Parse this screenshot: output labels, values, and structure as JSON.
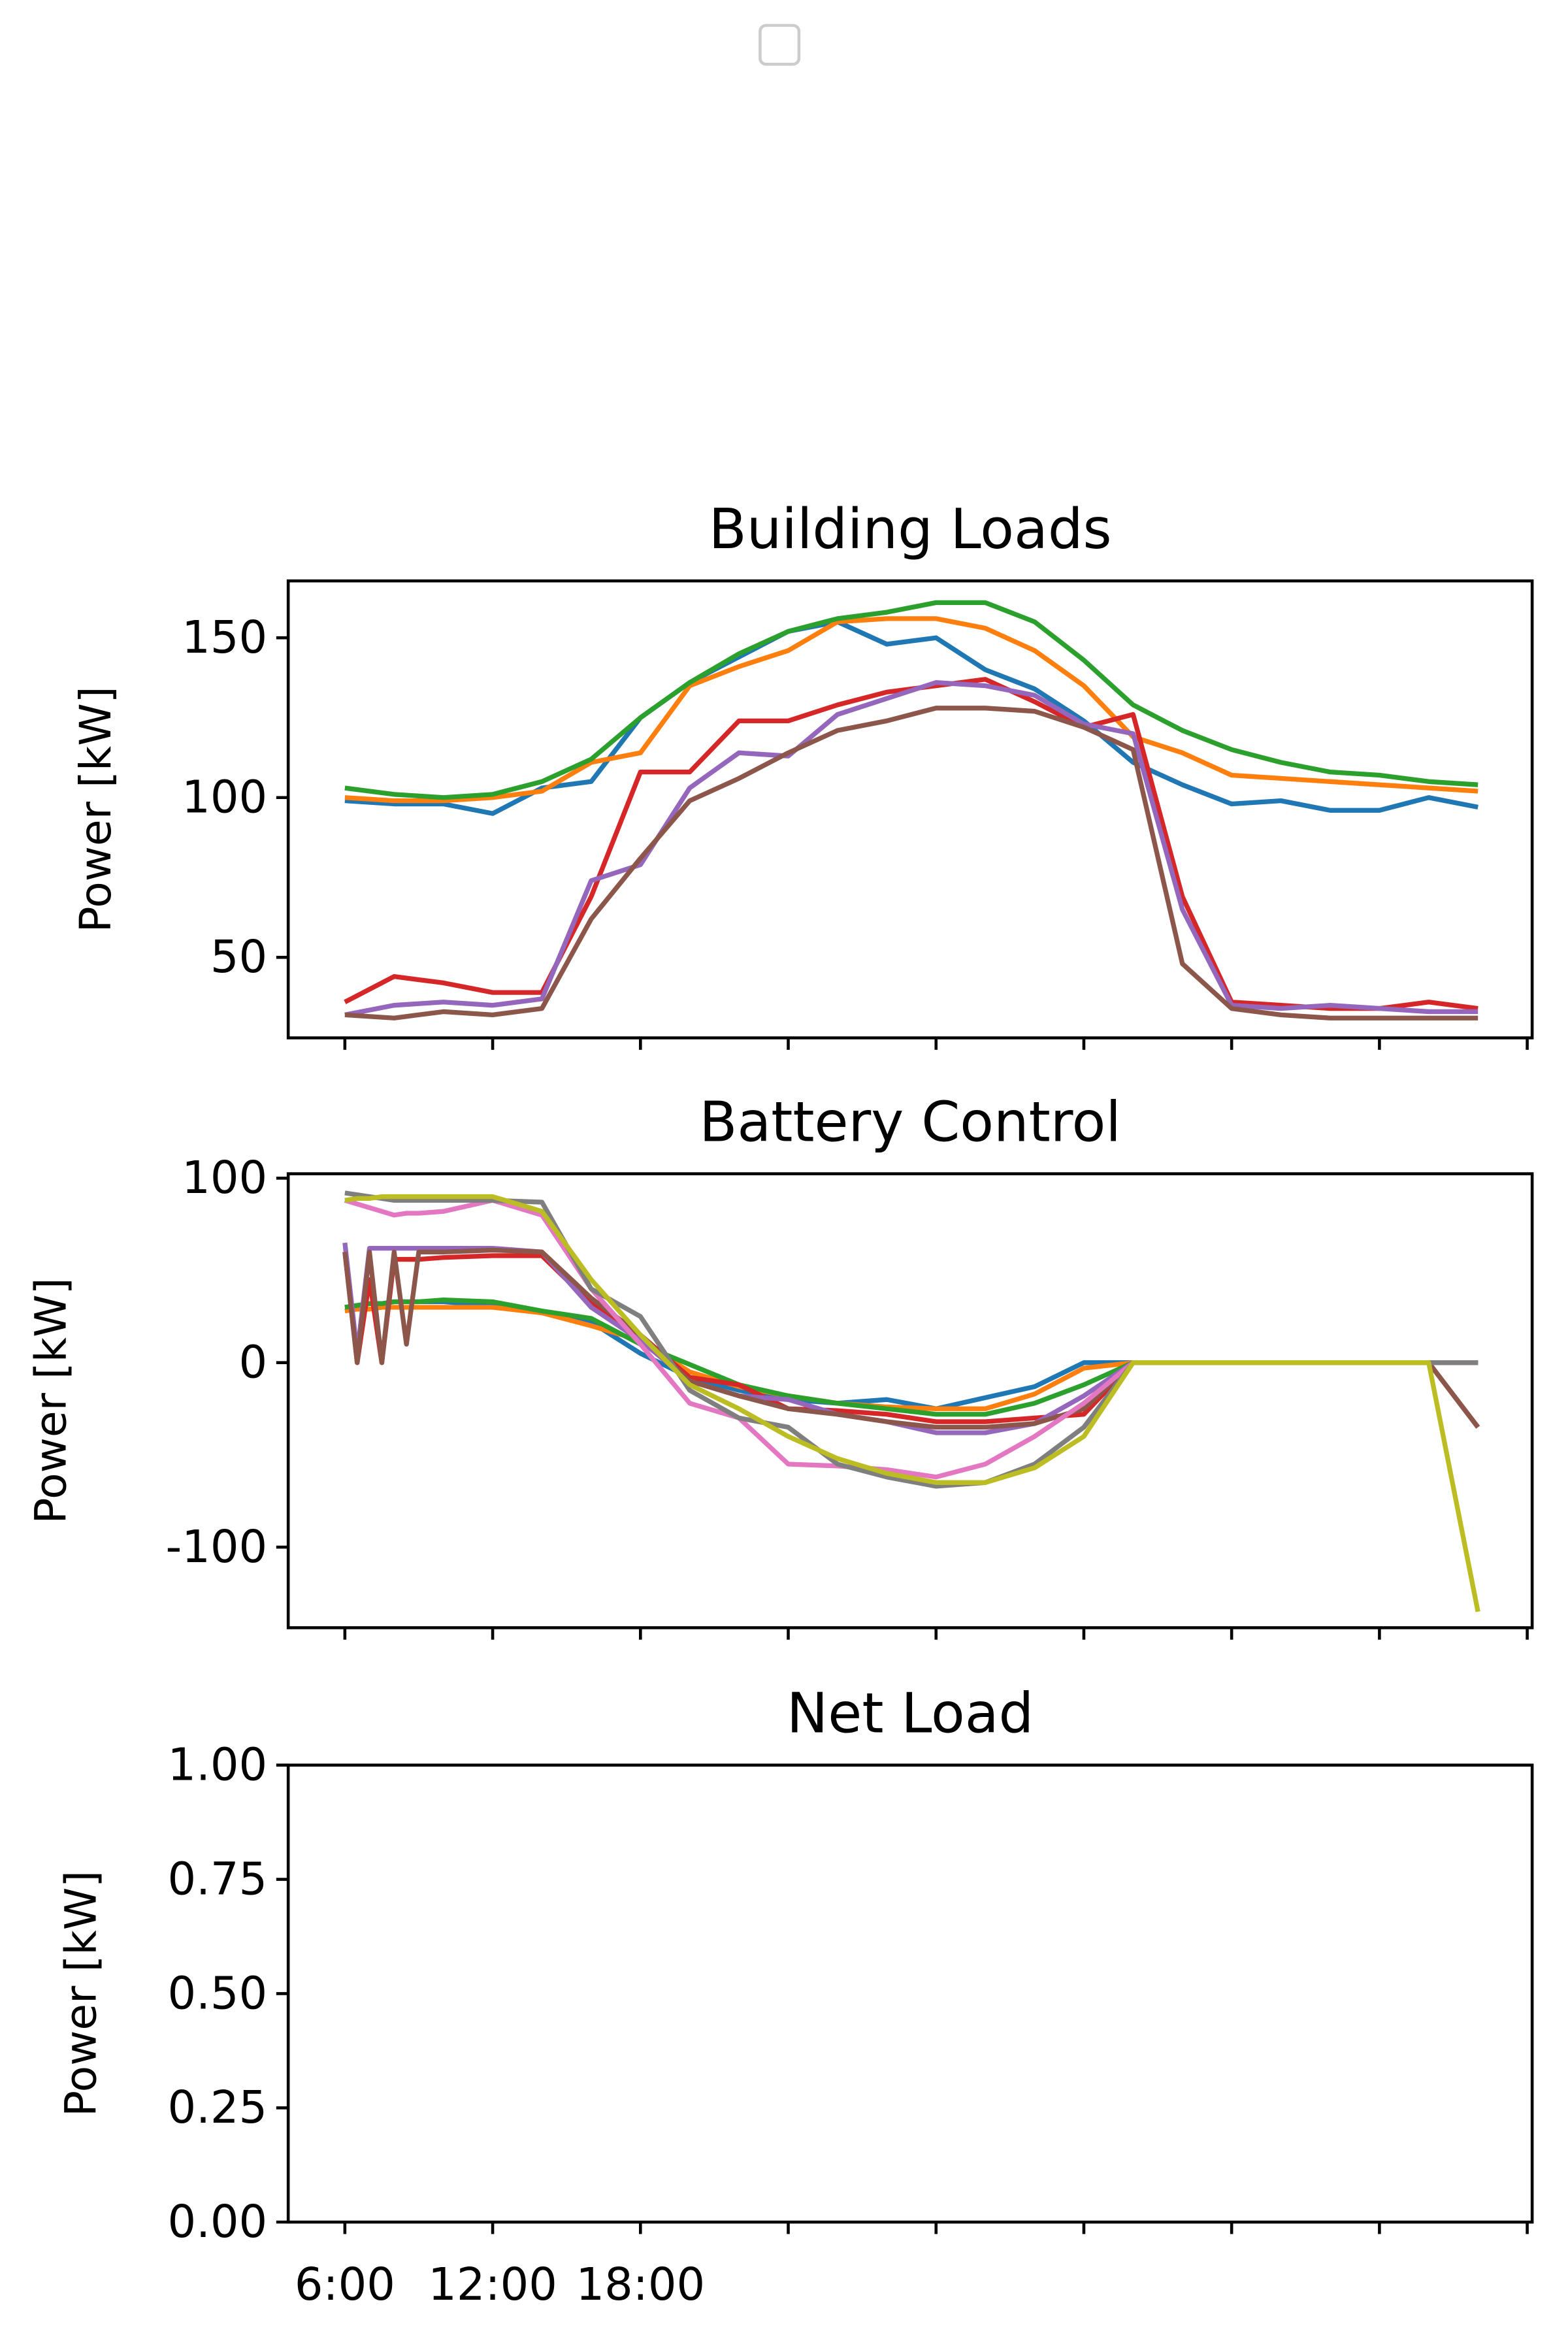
{
  "chart_data": [
    {
      "type": "line",
      "title": "Building Loads",
      "y_label": "Power [kW]",
      "x": [
        6,
        8,
        10,
        12,
        14,
        16,
        18,
        20,
        22,
        24,
        26,
        28,
        30,
        32,
        34,
        36,
        38,
        40,
        42,
        44,
        46,
        48,
        50,
        52
      ],
      "series": [
        {
          "color": "#1f77b4",
          "values": [
            99,
            98,
            98,
            95,
            103,
            105,
            125,
            136,
            144,
            152,
            155,
            148,
            150,
            140,
            134,
            124,
            111,
            104,
            98,
            99,
            96,
            96,
            100,
            97
          ]
        },
        {
          "color": "#ff7f0e",
          "values": [
            100,
            99,
            99,
            100,
            102,
            111,
            114,
            135,
            141,
            146,
            155,
            156,
            156,
            153,
            146,
            135,
            119,
            114,
            107,
            106,
            105,
            104,
            103,
            102
          ]
        },
        {
          "color": "#2ca02c",
          "values": [
            103,
            101,
            100,
            101,
            105,
            112,
            125,
            136,
            145,
            152,
            156,
            158,
            161,
            161,
            155,
            143,
            129,
            121,
            115,
            111,
            108,
            107,
            105,
            104
          ]
        },
        {
          "color": "#d62728",
          "values": [
            36,
            44,
            42,
            39,
            39,
            69,
            108,
            108,
            124,
            124,
            129,
            133,
            135,
            137,
            130,
            122,
            126,
            69,
            36,
            35,
            34,
            34,
            36,
            34
          ]
        },
        {
          "color": "#9467bd",
          "values": [
            32,
            35,
            36,
            35,
            37,
            74,
            79,
            103,
            114,
            113,
            126,
            131,
            136,
            135,
            132,
            123,
            120,
            65,
            35,
            34,
            35,
            34,
            33,
            33
          ]
        },
        {
          "color": "#8c564b",
          "values": [
            32,
            31,
            33,
            32,
            34,
            62,
            81,
            99,
            106,
            114,
            121,
            124,
            128,
            128,
            127,
            122,
            115,
            48,
            34,
            32,
            31,
            31,
            31,
            31
          ]
        }
      ],
      "xlim": [
        3.7,
        54.2
      ],
      "ylim": [
        24.8,
        167.8
      ],
      "xticks": [
        6,
        12,
        18,
        24,
        30,
        36,
        42,
        48,
        54
      ],
      "yticks": [
        50,
        100,
        150
      ]
    },
    {
      "type": "line",
      "title": "Battery Control",
      "y_label": "Power [kW]",
      "x": [
        6,
        6.5,
        7,
        7.5,
        8,
        8.5,
        9,
        10,
        12,
        14,
        16,
        18,
        20,
        22,
        24,
        26,
        28,
        30,
        32,
        34,
        36,
        38,
        40,
        42,
        44,
        46,
        48,
        50,
        52
      ],
      "series": [
        {
          "color": "#1f77b4",
          "values": [
            30,
            31,
            32,
            32,
            33,
            33,
            33,
            33,
            31,
            27,
            22,
            5,
            -8,
            -15,
            -20,
            -22,
            -20,
            -25,
            -19,
            -13,
            0,
            0,
            0,
            0,
            0,
            0,
            0,
            0,
            0
          ]
        },
        {
          "color": "#ff7f0e",
          "values": [
            28,
            29,
            29,
            30,
            30,
            30,
            30,
            30,
            30,
            27,
            20,
            12,
            -5,
            -13,
            -18,
            -22,
            -24,
            -25,
            -25,
            -17,
            -3,
            0,
            0,
            0,
            0,
            0,
            0,
            0,
            0
          ]
        },
        {
          "color": "#2ca02c",
          "values": [
            30,
            31,
            32,
            32,
            33,
            33,
            33,
            34,
            33,
            28,
            24,
            10,
            -1,
            -12,
            -18,
            -22,
            -25,
            -28,
            -28,
            -22,
            -12,
            0,
            0,
            0,
            0,
            0,
            0,
            0,
            0
          ]
        },
        {
          "color": "#d62728",
          "values": [
            60,
            0,
            45,
            0,
            56,
            56,
            56,
            57,
            58,
            58,
            32,
            15,
            -8,
            -12,
            -25,
            -26,
            -28,
            -32,
            -32,
            -30,
            -28,
            0,
            0,
            0,
            0,
            0,
            0,
            0,
            -35
          ]
        },
        {
          "color": "#9467bd",
          "values": [
            65,
            5,
            62,
            62,
            62,
            62,
            62,
            62,
            62,
            60,
            30,
            12,
            -10,
            -18,
            -20,
            -28,
            -32,
            -38,
            -38,
            -33,
            -18,
            0,
            0,
            0,
            0,
            0,
            0,
            0,
            0
          ]
        },
        {
          "color": "#8c564b",
          "values": [
            60,
            0,
            60,
            0,
            60,
            10,
            60,
            60,
            61,
            60,
            35,
            15,
            -10,
            -18,
            -25,
            -28,
            -32,
            -35,
            -35,
            -33,
            -25,
            0,
            0,
            0,
            0,
            0,
            0,
            0,
            -35
          ]
        },
        {
          "color": "#e377c2",
          "values": [
            88,
            86,
            84,
            82,
            80,
            81,
            81,
            82,
            88,
            80,
            40,
            10,
            -22,
            -30,
            -55,
            -56,
            -58,
            -62,
            -55,
            -40,
            -22,
            0,
            0,
            0,
            0,
            0,
            0,
            0,
            0
          ]
        },
        {
          "color": "#7f7f7f",
          "values": [
            92,
            91,
            90,
            89,
            88,
            88,
            88,
            88,
            88,
            87,
            40,
            25,
            -15,
            -30,
            -35,
            -55,
            -62,
            -67,
            -65,
            -55,
            -35,
            0,
            0,
            0,
            0,
            0,
            0,
            0,
            0
          ]
        },
        {
          "color": "#bcbd22",
          "values": [
            88,
            89,
            89,
            90,
            90,
            90,
            90,
            90,
            90,
            82,
            45,
            15,
            -12,
            -25,
            -40,
            -52,
            -60,
            -65,
            -65,
            -57,
            -40,
            0,
            0,
            0,
            0,
            0,
            0,
            0,
            -135
          ]
        }
      ],
      "xlim": [
        3.7,
        54.2
      ],
      "ylim": [
        -143.7,
        102.4
      ],
      "xticks": [
        6,
        12,
        18,
        24,
        30,
        36,
        42,
        48,
        54
      ],
      "yticks": [
        -100,
        0,
        100
      ]
    },
    {
      "type": "line",
      "title": "Net Load",
      "y_label": "Power [kW]",
      "series": [],
      "xlim": [
        3.7,
        54.2
      ],
      "ylim": [
        0,
        1
      ],
      "xticks": [
        {
          "value": 6,
          "label": "6:00"
        },
        {
          "value": 12,
          "label": "12:00"
        },
        {
          "value": 18,
          "label": "18:00"
        },
        {
          "value": 24,
          "label": null
        },
        {
          "value": 30,
          "label": null
        },
        {
          "value": 36,
          "label": null
        },
        {
          "value": 42,
          "label": null
        },
        {
          "value": 48,
          "label": null
        },
        {
          "value": 54,
          "label": null
        }
      ],
      "yticks": [
        {
          "value": 0,
          "label": "0.00"
        },
        {
          "value": 0.25,
          "label": "0.25"
        },
        {
          "value": 0.5,
          "label": "0.50"
        },
        {
          "value": 0.75,
          "label": "0.75"
        },
        {
          "value": 1,
          "label": "1.00"
        }
      ]
    }
  ]
}
